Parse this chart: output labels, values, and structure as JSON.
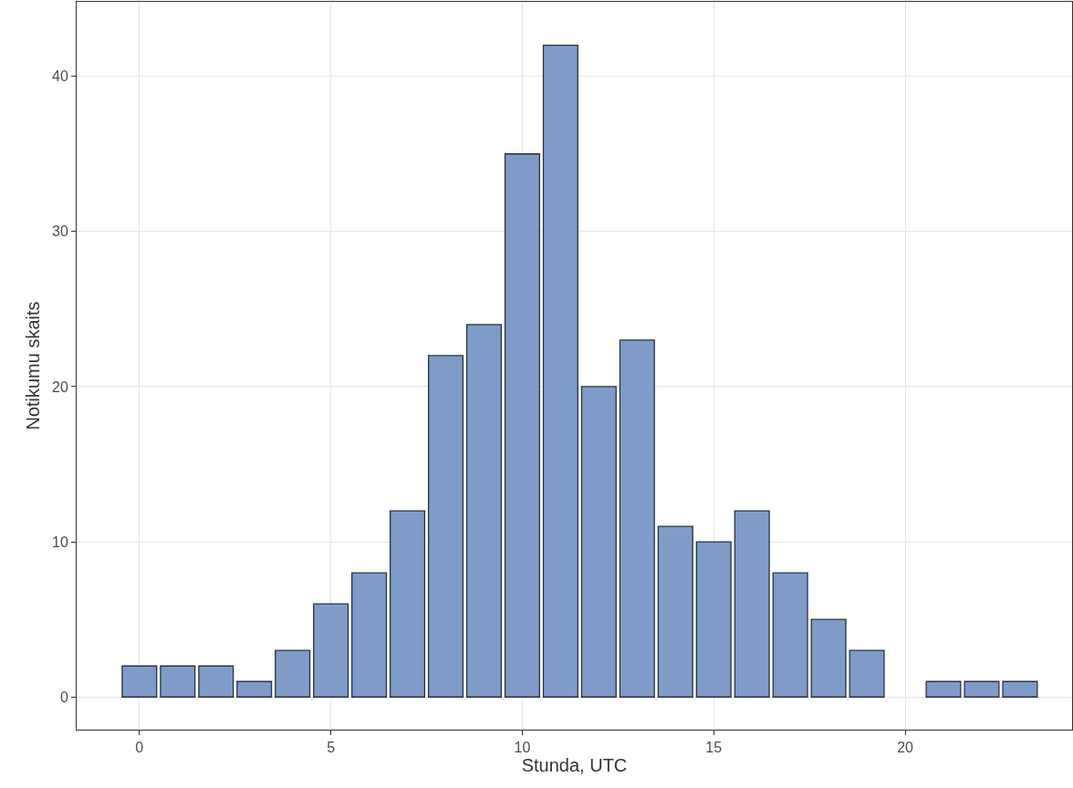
{
  "chart_data": {
    "type": "bar",
    "xlabel": "Stunda, UTC",
    "ylabel": "Notikumu skaits",
    "x": [
      0,
      1,
      2,
      3,
      4,
      5,
      6,
      7,
      8,
      9,
      10,
      11,
      12,
      13,
      14,
      15,
      16,
      17,
      18,
      19,
      20,
      21,
      22,
      23
    ],
    "values": [
      2,
      2,
      2,
      1,
      3,
      6,
      8,
      12,
      22,
      24,
      35,
      42,
      20,
      23,
      11,
      10,
      12,
      8,
      5,
      3,
      null,
      1,
      1,
      1
    ],
    "color": "#7f9cc9",
    "xlim": [
      -1.64,
      24.36
    ],
    "xticks": [
      0,
      5,
      10,
      15,
      20
    ],
    "ylim": [
      -2.1,
      44.8
    ],
    "yticks": [
      0,
      10,
      20,
      30,
      40
    ],
    "grid": true
  }
}
